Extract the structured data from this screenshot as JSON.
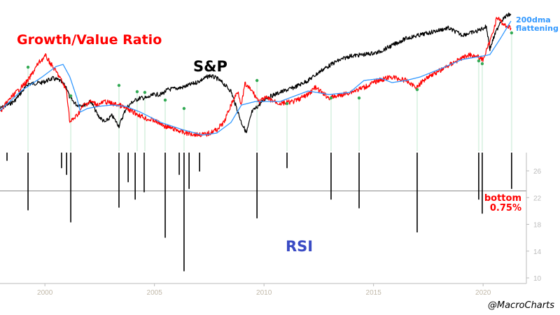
{
  "chart_data": [
    {
      "type": "line",
      "title": "Growth/Value Ratio",
      "y_scale": "unlabeled relative level (0-100)",
      "annotations": [
        "S&P",
        "200dma flattening"
      ],
      "series": [
        {
          "name": "S&P",
          "color": "#000000",
          "points": [
            [
              1997.95,
              30
            ],
            [
              1998.59,
              35
            ],
            [
              1999.23,
              47.5
            ],
            [
              1999.87,
              48.5
            ],
            [
              2000.35,
              51.5
            ],
            [
              2000.67,
              50
            ],
            [
              2000.99,
              45
            ],
            [
              2001.14,
              37.5
            ],
            [
              2001.46,
              32.5
            ],
            [
              2001.78,
              32.5
            ],
            [
              2002.1,
              35
            ],
            [
              2002.42,
              25
            ],
            [
              2002.74,
              20
            ],
            [
              2003.06,
              25
            ],
            [
              2003.38,
              17.5
            ],
            [
              2003.7,
              30
            ],
            [
              2004.02,
              35
            ],
            [
              2004.34,
              37.5
            ],
            [
              2004.66,
              37.5
            ],
            [
              2004.98,
              40
            ],
            [
              2005.3,
              40
            ],
            [
              2005.62,
              43.5
            ],
            [
              2006.26,
              45
            ],
            [
              2006.9,
              48.5
            ],
            [
              2007.53,
              53.5
            ],
            [
              2007.85,
              51.5
            ],
            [
              2008.17,
              47.5
            ],
            [
              2008.49,
              42.5
            ],
            [
              2008.81,
              27.5
            ],
            [
              2008.97,
              20
            ],
            [
              2009.2,
              12.5
            ],
            [
              2009.45,
              27.5
            ],
            [
              2009.77,
              32.5
            ],
            [
              2010.09,
              37.5
            ],
            [
              2010.73,
              41.5
            ],
            [
              2011.37,
              45
            ],
            [
              2012.01,
              50
            ],
            [
              2012.65,
              57.5
            ],
            [
              2013.29,
              63.5
            ],
            [
              2013.92,
              67.5
            ],
            [
              2014.56,
              68.5
            ],
            [
              2015.2,
              70
            ],
            [
              2015.84,
              75
            ],
            [
              2016.48,
              80
            ],
            [
              2017.12,
              82.5
            ],
            [
              2017.76,
              85
            ],
            [
              2018.4,
              87.5
            ],
            [
              2019.04,
              82.5
            ],
            [
              2019.68,
              85
            ],
            [
              2020.15,
              88.5
            ],
            [
              2020.31,
              72.5
            ],
            [
              2020.47,
              80
            ],
            [
              2020.79,
              92.5
            ],
            [
              2021.11,
              96.5
            ],
            [
              2021.27,
              97.5
            ]
          ]
        },
        {
          "name": "Growth/Value Ratio",
          "color": "#ff0000",
          "points": [
            [
              1997.95,
              27.5
            ],
            [
              1998.43,
              37.5
            ],
            [
              1998.91,
              45
            ],
            [
              1999.23,
              50
            ],
            [
              1999.71,
              62.5
            ],
            [
              2000.03,
              67.5
            ],
            [
              2000.35,
              60
            ],
            [
              2000.67,
              52.5
            ],
            [
              2000.99,
              42.5
            ],
            [
              2001.14,
              20
            ],
            [
              2001.46,
              25
            ],
            [
              2001.78,
              32.5
            ],
            [
              2002.1,
              35
            ],
            [
              2002.42,
              32.5
            ],
            [
              2002.74,
              35
            ],
            [
              2003.06,
              33.5
            ],
            [
              2003.38,
              32.5
            ],
            [
              2003.7,
              30
            ],
            [
              2004.02,
              27.5
            ],
            [
              2004.34,
              25
            ],
            [
              2004.66,
              22.5
            ],
            [
              2004.98,
              21.5
            ],
            [
              2005.46,
              17.5
            ],
            [
              2005.94,
              15
            ],
            [
              2006.42,
              12.5
            ],
            [
              2006.9,
              11.5
            ],
            [
              2007.37,
              11.5
            ],
            [
              2007.85,
              15
            ],
            [
              2008.17,
              20
            ],
            [
              2008.49,
              32.5
            ],
            [
              2008.81,
              42.5
            ],
            [
              2008.97,
              32.5
            ],
            [
              2009.13,
              47.5
            ],
            [
              2009.45,
              42.5
            ],
            [
              2009.77,
              35
            ],
            [
              2010.09,
              37.5
            ],
            [
              2010.73,
              33.5
            ],
            [
              2011.37,
              35
            ],
            [
              2012.01,
              40
            ],
            [
              2012.33,
              45
            ],
            [
              2012.97,
              37.5
            ],
            [
              2013.61,
              40
            ],
            [
              2014.56,
              45
            ],
            [
              2015.2,
              50
            ],
            [
              2015.84,
              52.5
            ],
            [
              2016.48,
              50
            ],
            [
              2016.96,
              45
            ],
            [
              2017.44,
              52.5
            ],
            [
              2018.08,
              57.5
            ],
            [
              2018.72,
              63.5
            ],
            [
              2019.36,
              68.5
            ],
            [
              2019.68,
              67.5
            ],
            [
              2019.99,
              65
            ],
            [
              2020.31,
              77.5
            ],
            [
              2020.63,
              95
            ],
            [
              2020.95,
              90
            ],
            [
              2021.27,
              87.5
            ]
          ]
        },
        {
          "name": "200dma",
          "color": "#3399ff",
          "points": [
            [
              1997.95,
              28.5
            ],
            [
              1998.91,
              42.5
            ],
            [
              1999.87,
              52.5
            ],
            [
              2000.51,
              60
            ],
            [
              2000.83,
              61.5
            ],
            [
              2001.14,
              52.5
            ],
            [
              2001.46,
              37.5
            ],
            [
              2001.62,
              27.5
            ],
            [
              2001.94,
              30
            ],
            [
              2002.42,
              31.5
            ],
            [
              2003.06,
              32.5
            ],
            [
              2003.7,
              31.5
            ],
            [
              2004.34,
              27.5
            ],
            [
              2005.3,
              20
            ],
            [
              2006.26,
              15
            ],
            [
              2007.21,
              11
            ],
            [
              2007.85,
              12.5
            ],
            [
              2008.49,
              20
            ],
            [
              2008.97,
              32.5
            ],
            [
              2009.61,
              35
            ],
            [
              2010.73,
              35
            ],
            [
              2012.01,
              42.5
            ],
            [
              2012.97,
              40
            ],
            [
              2013.92,
              41.5
            ],
            [
              2014.56,
              50
            ],
            [
              2015.36,
              51.5
            ],
            [
              2015.84,
              48.5
            ],
            [
              2016.48,
              50
            ],
            [
              2017.12,
              52.5
            ],
            [
              2018.08,
              58.5
            ],
            [
              2019.04,
              65
            ],
            [
              2019.99,
              67.5
            ],
            [
              2020.31,
              68.5
            ],
            [
              2020.79,
              80
            ],
            [
              2021.27,
              92.5
            ]
          ]
        }
      ],
      "signal_points": {
        "color": "#33aa55",
        "points": [
          [
            1999.23,
            59.5
          ],
          [
            2001.18,
            39
          ],
          [
            2003.38,
            46.5
          ],
          [
            2004.21,
            42
          ],
          [
            2004.56,
            41.5
          ],
          [
            2005.49,
            36
          ],
          [
            2006.35,
            30
          ],
          [
            2009.68,
            50
          ],
          [
            2011.05,
            33.5
          ],
          [
            2013.06,
            37.5
          ],
          [
            2014.34,
            37.5
          ],
          [
            2016.99,
            43.5
          ],
          [
            2019.8,
            64
          ],
          [
            2019.96,
            62
          ],
          [
            2021.3,
            84
          ]
        ]
      }
    },
    {
      "type": "bar",
      "title": "RSI",
      "xlim": [
        1997.95,
        2021.9
      ],
      "ylim": [
        10,
        28.7
      ],
      "x_ticks": [
        "2000",
        "2005",
        "2010",
        "2015",
        "2020"
      ],
      "y_ticks": [
        "26",
        "22",
        "18",
        "14",
        "10"
      ],
      "threshold": 23,
      "threshold_color": "#22cc22",
      "annotation": "bottom 0.75%",
      "bars": [
        [
          1998.27,
          27.5
        ],
        [
          1999.23,
          20.1
        ],
        [
          2000.76,
          26.4
        ],
        [
          2000.99,
          25.4
        ],
        [
          2001.18,
          18.3
        ],
        [
          2003.38,
          20.5
        ],
        [
          2003.8,
          24.3
        ],
        [
          2004.12,
          21.7
        ],
        [
          2004.53,
          22.8
        ],
        [
          2005.49,
          16.0
        ],
        [
          2006.13,
          25.4
        ],
        [
          2006.35,
          11.0
        ],
        [
          2006.58,
          23.3
        ],
        [
          2007.06,
          25.9
        ],
        [
          2009.68,
          18.9
        ],
        [
          2011.05,
          26.4
        ],
        [
          2013.06,
          21.7
        ],
        [
          2014.34,
          20.4
        ],
        [
          2016.99,
          16.8
        ],
        [
          2019.8,
          21.7
        ],
        [
          2019.96,
          19.6
        ],
        [
          2021.3,
          23.3
        ]
      ]
    }
  ],
  "labels": {
    "gv_title": "Growth/Value Ratio",
    "sp": "S&P",
    "rsi": "RSI",
    "ma_note_1": "200dma",
    "ma_note_2": "flattening",
    "bottom_1": "bottom",
    "bottom_2": "0.75%",
    "source": "@MacroCharts"
  }
}
